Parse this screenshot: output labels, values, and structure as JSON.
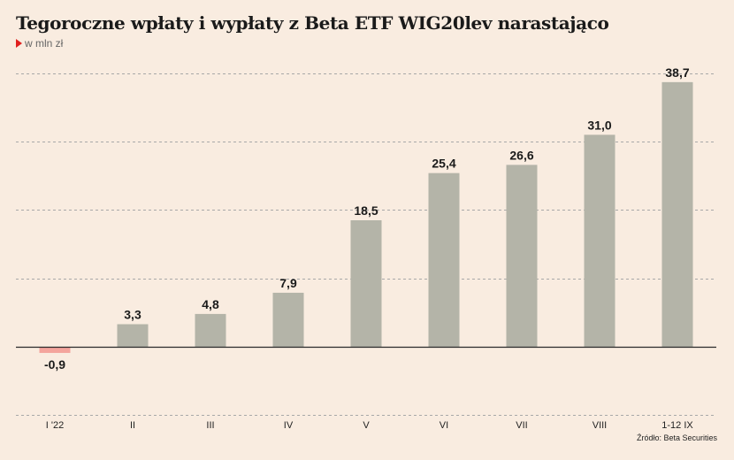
{
  "title": "Tegoroczne  wpłaty i wypłaty z Beta ETF WIG20lev narastająco",
  "unit": "w mln zł",
  "source": "Źródło: Beta Securities",
  "colors": {
    "background": "#f9ece0",
    "bar_positive": "#b4b4a8",
    "bar_negative": "#f4a49c",
    "unit_marker": "#e0201f"
  },
  "chart_data": {
    "type": "bar",
    "categories": [
      "I '22",
      "II",
      "III",
      "IV",
      "V",
      "VI",
      "VII",
      "VIII",
      "1-12 IX"
    ],
    "values": [
      -0.9,
      3.3,
      4.8,
      7.9,
      18.5,
      25.4,
      26.6,
      31.0,
      38.7
    ],
    "value_labels": [
      "-0,9",
      "3,3",
      "4,8",
      "7,9",
      "18,5",
      "25,4",
      "26,6",
      "31,0",
      "38,7"
    ],
    "ylim": [
      -10,
      40
    ],
    "gridlines": [
      -10,
      10,
      20,
      30,
      40
    ],
    "grid": true,
    "title": "Tegoroczne  wpłaty i wypłaty z Beta ETF WIG20lev narastająco",
    "xlabel": "",
    "ylabel": ""
  }
}
